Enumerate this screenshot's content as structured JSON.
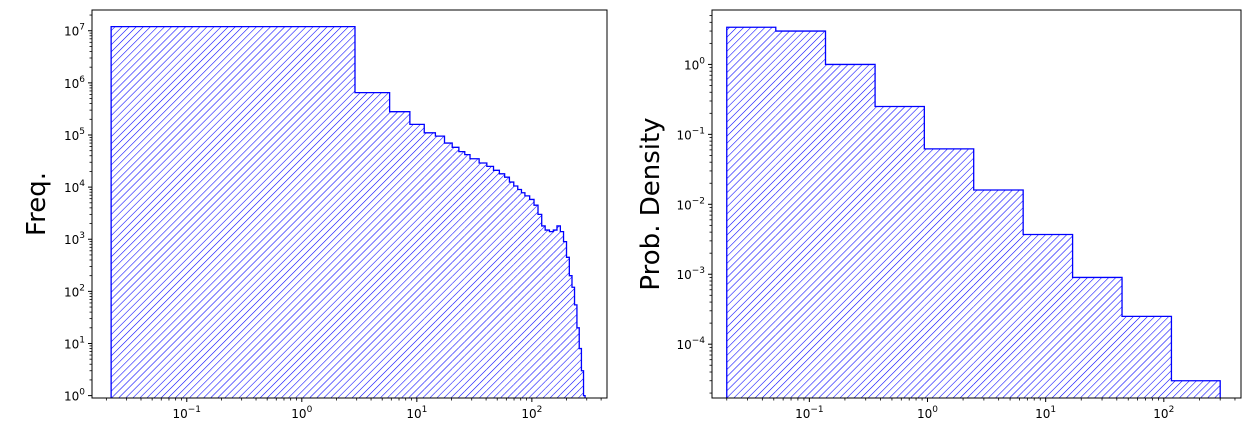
{
  "chart_data": [
    {
      "type": "histogram",
      "xscale": "log",
      "yscale": "log",
      "xlabel": "",
      "ylabel": "Freq.",
      "xlim": [
        0.015,
        450
      ],
      "ylim": [
        0.9,
        25000000
      ],
      "x_ticks": [
        0.1,
        1,
        10,
        100
      ],
      "x_tick_labels": [
        [
          "10",
          "−1"
        ],
        [
          "10",
          "0"
        ],
        [
          "10",
          "1"
        ],
        [
          "10",
          "2"
        ]
      ],
      "y_ticks": [
        1,
        10,
        100,
        1000,
        10000,
        100000,
        1000000,
        10000000
      ],
      "y_tick_labels": [
        [
          "10",
          "0"
        ],
        [
          "10",
          "1"
        ],
        [
          "10",
          "2"
        ],
        [
          "10",
          "3"
        ],
        [
          "10",
          "4"
        ],
        [
          "10",
          "5"
        ],
        [
          "10",
          "6"
        ],
        [
          "10",
          "7"
        ]
      ],
      "color": "#0000ff",
      "fill": "hatched",
      "grid": false,
      "bins": [
        {
          "x0": 0.022,
          "x1": 2.9,
          "y": 12000000
        },
        {
          "x0": 2.9,
          "x1": 5.8,
          "y": 650000
        },
        {
          "x0": 5.8,
          "x1": 8.7,
          "y": 280000
        },
        {
          "x0": 8.7,
          "x1": 11.6,
          "y": 160000
        },
        {
          "x0": 11.6,
          "x1": 14.5,
          "y": 110000
        },
        {
          "x0": 14.5,
          "x1": 17.4,
          "y": 95000
        },
        {
          "x0": 17.4,
          "x1": 20.3,
          "y": 70000
        },
        {
          "x0": 20.3,
          "x1": 23.2,
          "y": 58000
        },
        {
          "x0": 23.2,
          "x1": 26.1,
          "y": 48000
        },
        {
          "x0": 26.1,
          "x1": 29,
          "y": 42000
        },
        {
          "x0": 29,
          "x1": 34.8,
          "y": 35000
        },
        {
          "x0": 34.8,
          "x1": 40.6,
          "y": 29000
        },
        {
          "x0": 40.6,
          "x1": 46.4,
          "y": 25000
        },
        {
          "x0": 46.4,
          "x1": 52.2,
          "y": 21000
        },
        {
          "x0": 52.2,
          "x1": 58,
          "y": 18000
        },
        {
          "x0": 58,
          "x1": 63.8,
          "y": 15500
        },
        {
          "x0": 63.8,
          "x1": 69.6,
          "y": 12500
        },
        {
          "x0": 69.6,
          "x1": 75.4,
          "y": 10500
        },
        {
          "x0": 75.4,
          "x1": 81.2,
          "y": 9000
        },
        {
          "x0": 81.2,
          "x1": 87,
          "y": 7800
        },
        {
          "x0": 87,
          "x1": 95.7,
          "y": 6800
        },
        {
          "x0": 95.7,
          "x1": 104.4,
          "y": 5800
        },
        {
          "x0": 104.4,
          "x1": 113.1,
          "y": 4500
        },
        {
          "x0": 113.1,
          "x1": 121.8,
          "y": 3000
        },
        {
          "x0": 121.8,
          "x1": 130.5,
          "y": 1800
        },
        {
          "x0": 130.5,
          "x1": 142.1,
          "y": 1500
        },
        {
          "x0": 142.1,
          "x1": 153.7,
          "y": 1400
        },
        {
          "x0": 153.7,
          "x1": 165.3,
          "y": 1500
        },
        {
          "x0": 165.3,
          "x1": 176.9,
          "y": 1800
        },
        {
          "x0": 176.9,
          "x1": 188.5,
          "y": 1400
        },
        {
          "x0": 188.5,
          "x1": 200.1,
          "y": 900
        },
        {
          "x0": 200.1,
          "x1": 211.7,
          "y": 450
        },
        {
          "x0": 211.7,
          "x1": 223.3,
          "y": 200
        },
        {
          "x0": 223.3,
          "x1": 234.9,
          "y": 120
        },
        {
          "x0": 234.9,
          "x1": 246.5,
          "y": 55
        },
        {
          "x0": 246.5,
          "x1": 258.1,
          "y": 20
        },
        {
          "x0": 258.1,
          "x1": 269.7,
          "y": 8
        },
        {
          "x0": 269.7,
          "x1": 281.3,
          "y": 3
        },
        {
          "x0": 281.3,
          "x1": 290,
          "y": 1
        }
      ]
    },
    {
      "type": "histogram",
      "xscale": "log",
      "yscale": "log",
      "xlabel": "",
      "ylabel": "Prob. Density",
      "xlim": [
        0.015,
        450
      ],
      "ylim": [
        1.7e-05,
        6
      ],
      "x_ticks": [
        0.1,
        1,
        10,
        100
      ],
      "x_tick_labels": [
        [
          "10",
          "−1"
        ],
        [
          "10",
          "0"
        ],
        [
          "10",
          "1"
        ],
        [
          "10",
          "2"
        ]
      ],
      "y_ticks": [
        0.0001,
        0.001,
        0.01,
        0.1,
        1
      ],
      "y_tick_labels": [
        [
          "10",
          "−4"
        ],
        [
          "10",
          "−3"
        ],
        [
          "10",
          "−2"
        ],
        [
          "10",
          "−1"
        ],
        [
          "10",
          "0"
        ]
      ],
      "color": "#0000ff",
      "fill": "hatched",
      "grid": false,
      "bins": [
        {
          "x0": 0.02,
          "x1": 0.052,
          "y": 3.4
        },
        {
          "x0": 0.052,
          "x1": 0.137,
          "y": 3.0
        },
        {
          "x0": 0.137,
          "x1": 0.36,
          "y": 1.0
        },
        {
          "x0": 0.36,
          "x1": 0.94,
          "y": 0.25
        },
        {
          "x0": 0.94,
          "x1": 2.46,
          "y": 0.062
        },
        {
          "x0": 2.46,
          "x1": 6.45,
          "y": 0.016
        },
        {
          "x0": 6.45,
          "x1": 16.9,
          "y": 0.0037
        },
        {
          "x0": 16.9,
          "x1": 44.3,
          "y": 0.0009
        },
        {
          "x0": 44.3,
          "x1": 116,
          "y": 0.00025
        },
        {
          "x0": 116,
          "x1": 300,
          "y": 3e-05
        }
      ]
    }
  ]
}
